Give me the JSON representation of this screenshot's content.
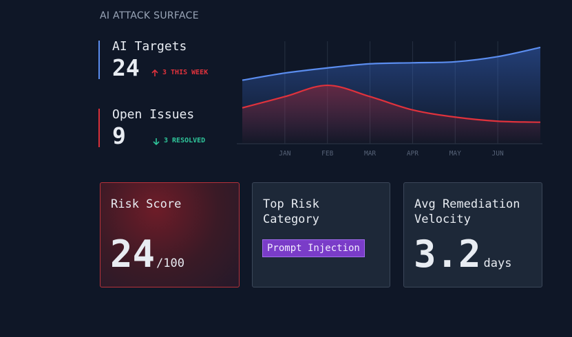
{
  "header": {
    "title": "AI ATTACK SURFACE"
  },
  "stats": [
    {
      "label": "AI Targets",
      "value": 24,
      "delta": "3 THIS WEEK",
      "direction": "up"
    },
    {
      "label": "Open Issues",
      "value": 9,
      "delta": "3 RESOLVED",
      "direction": "down"
    }
  ],
  "chart_data": {
    "type": "line",
    "categories": [
      null,
      "JAN",
      "FEB",
      "MAR",
      "APR",
      "MAY",
      "JUN",
      null
    ],
    "series": [
      {
        "color": "#5b8def",
        "values": [
          62,
          69,
          74,
          78,
          79,
          80,
          85,
          94
        ]
      },
      {
        "color": "#e0323c",
        "values": [
          35,
          46,
          57,
          46,
          33,
          26,
          22,
          21
        ]
      }
    ],
    "ylim": [
      0,
      100
    ],
    "grid": true
  },
  "cards": [
    {
      "title": "Risk Score",
      "value": 24,
      "suffix": "/100"
    },
    {
      "title": "Top Risk Category",
      "badge": "Prompt Injection"
    },
    {
      "title": "Avg Remediation Velocity",
      "value": 3.2,
      "suffix": "days"
    }
  ]
}
